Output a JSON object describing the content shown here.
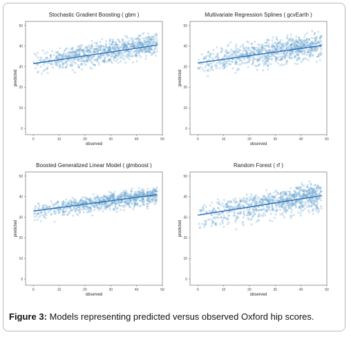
{
  "caption": {
    "label": "Figure 3:",
    "text": " Models representing predicted versus observed Oxford hip scores."
  },
  "colors": {
    "points": "#6aa5cf",
    "line": "#2a6cb4",
    "frame": "#555555"
  },
  "chart_data": [
    {
      "type": "scatter",
      "title": "Stochastic Gradient Boosting  ( gbm )",
      "xlabel": "observed",
      "ylabel": "predicted",
      "xlim": [
        -3,
        50
      ],
      "ylim": [
        -3,
        52
      ],
      "xticks": [
        0,
        10,
        20,
        30,
        40,
        50
      ],
      "yticks": [
        0,
        10,
        20,
        30,
        40,
        50
      ],
      "fit_line": {
        "x": [
          0,
          48
        ],
        "y": [
          31.5,
          40.5
        ]
      },
      "scatter_profile": {
        "x_range": [
          0,
          48
        ],
        "y_base_at_x0": 32,
        "y_slope": 0.2,
        "spread_low": 9,
        "spread_high": 7,
        "n_points": 900
      }
    },
    {
      "type": "scatter",
      "title": "Multivariate Regression Splines  ( gcvEarth )",
      "xlabel": "observed",
      "ylabel": "predicted",
      "xlim": [
        -3,
        50
      ],
      "ylim": [
        -3,
        52
      ],
      "xticks": [
        0,
        10,
        20,
        30,
        40,
        50
      ],
      "yticks": [
        0,
        10,
        20,
        30,
        40,
        50
      ],
      "fit_line": {
        "x": [
          0,
          48
        ],
        "y": [
          31.8,
          40.3
        ]
      },
      "scatter_profile": {
        "x_range": [
          0,
          48
        ],
        "y_base_at_x0": 32,
        "y_slope": 0.19,
        "spread_low": 9,
        "spread_high": 8,
        "n_points": 900
      }
    },
    {
      "type": "scatter",
      "title": "Boosted Generalized Linear Model  ( glmboost )",
      "xlabel": "observed",
      "ylabel": "predicted",
      "xlim": [
        -3,
        50
      ],
      "ylim": [
        -3,
        52
      ],
      "xticks": [
        0,
        10,
        20,
        30,
        40,
        50
      ],
      "yticks": [
        0,
        10,
        20,
        30,
        40,
        50
      ],
      "fit_line": {
        "x": [
          0,
          48
        ],
        "y": [
          33,
          41
        ]
      },
      "scatter_profile": {
        "x_range": [
          0,
          48
        ],
        "y_base_at_x0": 33,
        "y_slope": 0.17,
        "spread_low": 7,
        "spread_high": 5,
        "n_points": 900
      }
    },
    {
      "type": "scatter",
      "title": "Random Forest  ( rf )",
      "xlabel": "observed",
      "ylabel": "predicted",
      "xlim": [
        -3,
        50
      ],
      "ylim": [
        -3,
        52
      ],
      "xticks": [
        0,
        10,
        20,
        30,
        40,
        50
      ],
      "yticks": [
        0,
        10,
        20,
        30,
        40,
        50
      ],
      "fit_line": {
        "x": [
          0,
          48
        ],
        "y": [
          31,
          40.5
        ]
      },
      "scatter_profile": {
        "x_range": [
          0,
          48
        ],
        "y_base_at_x0": 31,
        "y_slope": 0.21,
        "spread_low": 11,
        "spread_high": 8,
        "n_points": 900
      }
    }
  ]
}
